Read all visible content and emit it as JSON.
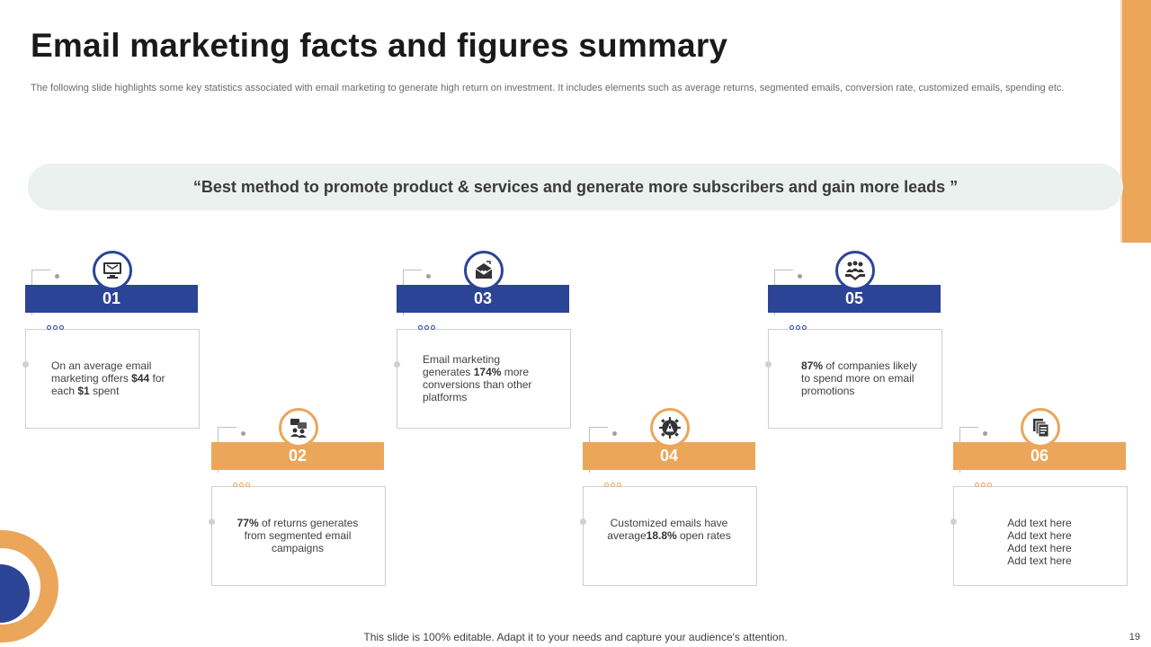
{
  "slide": {
    "title": "Email marketing facts and figures summary",
    "subtitle": "The following slide highlights some key statistics associated with email marketing to generate high return on investment. It includes elements such as average returns, segmented emails, conversion rate, customized emails, spending etc.",
    "quote": "“Best method to promote product & services and generate more subscribers and gain more leads ”",
    "footer": "This slide is 100% editable. Adapt it to your needs and capture your audience's attention.",
    "page_number": "19"
  },
  "cards": [
    {
      "number": "01",
      "icon": "computer-email-icon",
      "theme": "blue",
      "parts": [
        "On an average email marketing offers ",
        "$44",
        " for each ",
        "$1",
        " spent"
      ]
    },
    {
      "number": "02",
      "icon": "team-chat-icon",
      "theme": "orange",
      "parts": [
        "77%",
        " of returns generates from segmented email campaigns"
      ]
    },
    {
      "number": "03",
      "icon": "envelope-heart-icon",
      "theme": "blue",
      "parts": [
        "Email marketing generates ",
        "174%",
        " more conversions than other platforms"
      ]
    },
    {
      "number": "04",
      "icon": "gear-icon",
      "theme": "orange",
      "parts": [
        "Customized emails have average",
        "18.8%",
        " open rates"
      ]
    },
    {
      "number": "05",
      "icon": "handshake-group-icon",
      "theme": "blue",
      "parts": [
        "87%",
        " of companies likely to spend more on email promotions"
      ]
    },
    {
      "number": "06",
      "icon": "documents-icon",
      "theme": "orange",
      "parts": [
        "Add text here",
        "Add text here",
        "Add text here",
        "Add text here"
      ]
    }
  ],
  "colors": {
    "blue": "#2b4496",
    "orange": "#eba65a",
    "quote_bg": "#ebf1ee"
  }
}
